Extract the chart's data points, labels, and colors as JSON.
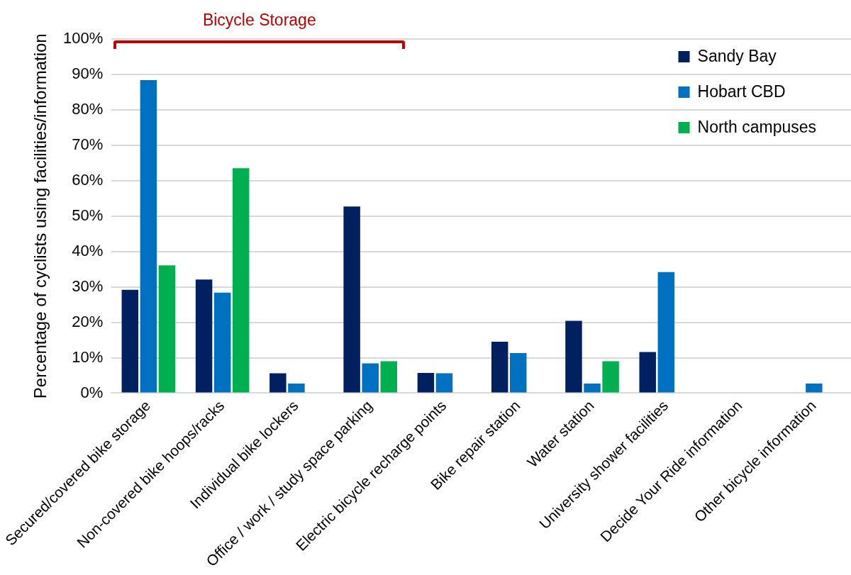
{
  "chart_data": {
    "type": "bar",
    "ylabel": "Percentage of cyclists using facilities/information",
    "categories": [
      "Secured/covered bike storage",
      "Non-covered bike hoops/racks",
      "Individual bike lockers",
      "Office / work / study space parking",
      "Electric bicycle recharge points",
      "Bike repair station",
      "Water station",
      "University shower facilities",
      "Decide Your Ride information",
      "Other bicycle information"
    ],
    "series": [
      {
        "name": "Sandy Bay",
        "color": "#002060",
        "values": [
          29.2,
          32.1,
          5.6,
          52.7,
          5.7,
          14.5,
          20.4,
          11.6,
          null,
          null
        ]
      },
      {
        "name": "Hobart CBD",
        "color": "#0070c0",
        "values": [
          88.4,
          28.4,
          2.7,
          8.4,
          5.6,
          11.3,
          2.7,
          34.2,
          null,
          2.7
        ]
      },
      {
        "name": "North campuses",
        "color": "#00b050",
        "values": [
          36.1,
          63.5,
          null,
          9.0,
          null,
          null,
          9.0,
          null,
          null,
          null
        ]
      }
    ],
    "ylim": [
      0,
      100
    ],
    "yticks": [
      {
        "value": 0,
        "label": "0%"
      },
      {
        "value": 10,
        "label": "10%"
      },
      {
        "value": 20,
        "label": "20%"
      },
      {
        "value": 30,
        "label": "30%"
      },
      {
        "value": 40,
        "label": "40%"
      },
      {
        "value": 50,
        "label": "50%"
      },
      {
        "value": 60,
        "label": "60%"
      },
      {
        "value": 70,
        "label": "70%"
      },
      {
        "value": 80,
        "label": "80%"
      },
      {
        "value": 90,
        "label": "90%"
      },
      {
        "value": 100,
        "label": "100%"
      }
    ],
    "grid": "y",
    "legend": "top right",
    "annotations": [
      "Bicycle Storage"
    ]
  }
}
